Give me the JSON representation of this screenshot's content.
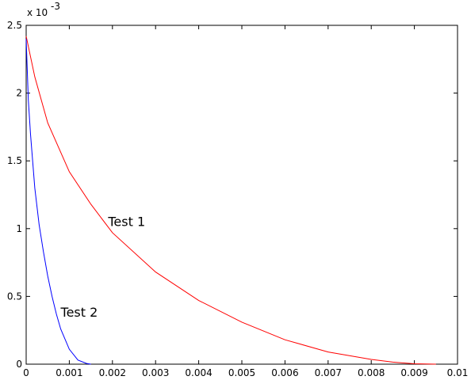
{
  "chart_data": {
    "type": "line",
    "title": "",
    "xlabel": "",
    "ylabel": "",
    "xlim": [
      0,
      0.01
    ],
    "ylim": [
      0,
      0.0025
    ],
    "y_multiplier_label": "x 10",
    "y_multiplier_exponent": "-3",
    "xticks": [
      0,
      0.001,
      0.002,
      0.003,
      0.004,
      0.005,
      0.006,
      0.007,
      0.008,
      0.009,
      0.01
    ],
    "xtick_labels": [
      "0",
      "0.001",
      "0.002",
      "0.003",
      "0.004",
      "0.005",
      "0.006",
      "0.007",
      "0.008",
      "0.009",
      "0.01"
    ],
    "yticks": [
      0,
      0.0005,
      0.001,
      0.0015,
      0.002,
      0.0025
    ],
    "ytick_labels": [
      "0",
      "0.5",
      "1",
      "1.5",
      "2",
      "2.5"
    ],
    "grid": false,
    "series": [
      {
        "label": "Test 1",
        "color": "#ff0000",
        "x": [
          0,
          0.0002,
          0.0005,
          0.001,
          0.0015,
          0.002,
          0.003,
          0.004,
          0.005,
          0.006,
          0.007,
          0.008,
          0.0085,
          0.009,
          0.0095
        ],
        "y": [
          0.00242,
          0.00212,
          0.00178,
          0.00142,
          0.00118,
          0.00097,
          0.00068,
          0.00047,
          0.00031,
          0.00018,
          9e-05,
          3.5e-05,
          1.5e-05,
          3e-06,
          0
        ]
      },
      {
        "label": "Test 2",
        "color": "#0000ff",
        "x": [
          0,
          5e-05,
          0.0001,
          0.0002,
          0.0003,
          0.0004,
          0.0005,
          0.0006,
          0.0007,
          0.0008,
          0.001,
          0.0012,
          0.0014,
          0.0015
        ],
        "y": [
          0.0024,
          0.00195,
          0.0017,
          0.0013,
          0.00103,
          0.00083,
          0.00065,
          0.0005,
          0.00037,
          0.00026,
          0.00011,
          3e-05,
          5e-06,
          0
        ]
      }
    ],
    "annotations": [
      {
        "text": "Test 1",
        "x": 0.0019,
        "y": 0.00102
      },
      {
        "text": "Test 2",
        "x": 0.0008,
        "y": 0.00035
      }
    ]
  }
}
